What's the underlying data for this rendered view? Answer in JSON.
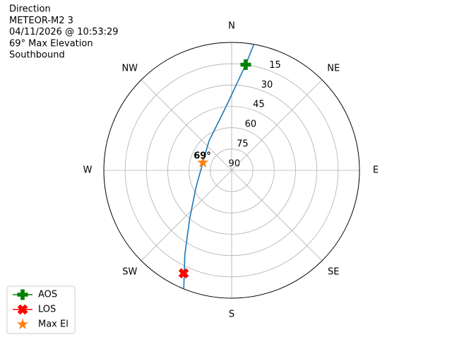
{
  "chart_data": {
    "type": "polar",
    "title_lines": [
      "Direction",
      "METEOR-M2 3",
      "04/11/2026 @ 10:53:29",
      "69° Max Elevation",
      "Southbound"
    ],
    "rlim": [
      90,
      0
    ],
    "rticks": [
      15,
      30,
      45,
      60,
      75,
      90
    ],
    "thetaticks": [
      {
        "value": 0,
        "label": "N"
      },
      {
        "value": 45,
        "label": "NE"
      },
      {
        "value": 90,
        "label": "E"
      },
      {
        "value": 135,
        "label": "SE"
      },
      {
        "value": 180,
        "label": "S"
      },
      {
        "value": 225,
        "label": "SW"
      },
      {
        "value": 270,
        "label": "W"
      },
      {
        "value": 315,
        "label": "NW"
      }
    ],
    "grid": true,
    "legend": "lower left",
    "series": [
      {
        "color": "#1f77b4",
        "marker": "line",
        "azimuth": [
          10,
          7.6,
          355,
          322,
          285,
          244,
          221,
          209,
          202
        ],
        "elevation": [
          0,
          15,
          45,
          64,
          69,
          62,
          45,
          22,
          0
        ]
      },
      {
        "name": "AOS",
        "color": "#008000",
        "marker": "plus",
        "azimuth": [
          7.6
        ],
        "elevation": [
          15
        ]
      },
      {
        "name": "LOS",
        "color": "#ff0000",
        "marker": "x",
        "azimuth": [
          205
        ],
        "elevation": [
          10
        ]
      },
      {
        "name": "Max El",
        "color": "#ff7f0e",
        "marker": "star",
        "azimuth": [
          285
        ],
        "elevation": [
          69
        ]
      }
    ],
    "annotation": "69°"
  }
}
